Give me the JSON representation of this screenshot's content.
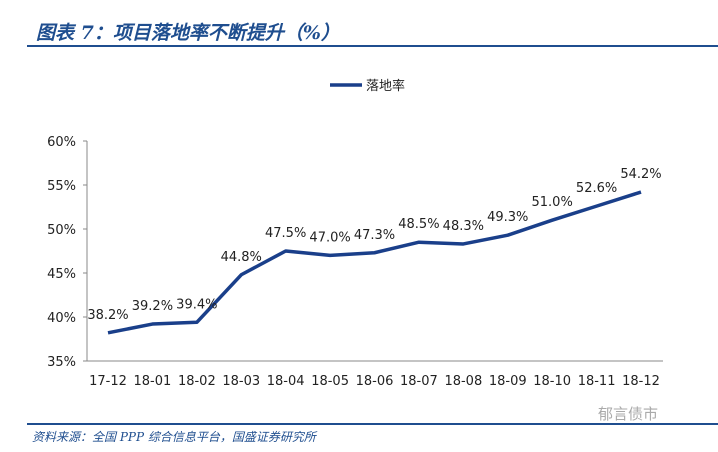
{
  "title": "图表 7：项目落地率不断提升（%）",
  "source": "资料来源：全国 PPP 综合信息平台，国盛证券研究所",
  "watermark": "郁言债市",
  "colors": {
    "accent": "#1f4e8f",
    "line": "#1a3f8a"
  },
  "chart_data": {
    "type": "line",
    "categories": [
      "17-12",
      "18-01",
      "18-02",
      "18-03",
      "18-04",
      "18-05",
      "18-06",
      "18-07",
      "18-08",
      "18-09",
      "18-10",
      "18-11",
      "18-12"
    ],
    "series": [
      {
        "name": "落地率",
        "values": [
          38.2,
          39.2,
          39.4,
          44.8,
          47.5,
          47.0,
          47.3,
          48.5,
          48.3,
          49.3,
          51.0,
          52.6,
          54.2
        ],
        "labels": [
          "38.2%",
          "39.2%",
          "39.4%",
          "44.8%",
          "47.5%",
          "47.0%",
          "47.3%",
          "48.5%",
          "48.3%",
          "49.3%",
          "51.0%",
          "52.6%",
          "54.2%"
        ]
      }
    ],
    "yticks": [
      "35%",
      "40%",
      "45%",
      "50%",
      "55%",
      "60%"
    ],
    "ylim": [
      35,
      60
    ],
    "legend": "top-center",
    "grid": false
  }
}
